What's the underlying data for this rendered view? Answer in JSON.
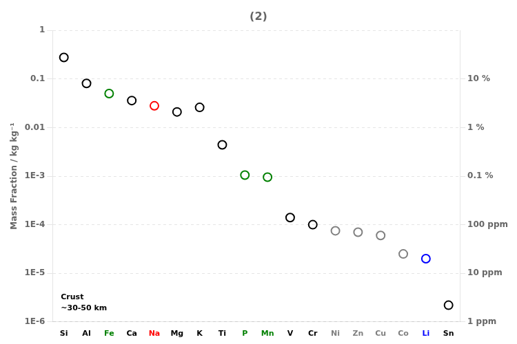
{
  "chart_data": {
    "type": "scatter",
    "title": "(2)",
    "ylabel": "Mass Fraction / kg kg⁻¹",
    "categories": [
      "Si",
      "Al",
      "Fe",
      "Ca",
      "Na",
      "Mg",
      "K",
      "Ti",
      "P",
      "Mn",
      "V",
      "Cr",
      "Ni",
      "Zn",
      "Cu",
      "Co",
      "Li",
      "Sn"
    ],
    "values": [
      0.277,
      0.081,
      0.05,
      0.036,
      0.028,
      0.021,
      0.026,
      0.0044,
      0.00105,
      0.00095,
      0.00014,
      0.0001,
      7.5e-05,
      7e-05,
      6e-05,
      2.5e-05,
      2e-05,
      2.2e-06
    ],
    "colors": [
      "black",
      "black",
      "green",
      "black",
      "red",
      "black",
      "black",
      "black",
      "green",
      "green",
      "black",
      "black",
      "gray",
      "gray",
      "gray",
      "gray",
      "blue",
      "black"
    ],
    "marker": "open_circle",
    "log": "y",
    "ylim": [
      1e-06,
      1
    ],
    "yticks": [
      {
        "value": 1e-06,
        "label": "1E-6"
      },
      {
        "value": 1e-05,
        "label": "1E-5"
      },
      {
        "value": 0.0001,
        "label": "1E-4"
      },
      {
        "value": 0.001,
        "label": "1E-3"
      },
      0.01,
      0.1,
      1
    ],
    "y2lim": [
      1e-06,
      1
    ],
    "y2ticks": [
      {
        "value": 1e-06,
        "label": "1 ppm"
      },
      {
        "value": 1e-05,
        "label": "10 ppm"
      },
      {
        "value": 0.0001,
        "label": "100 ppm"
      },
      {
        "value": 0.001,
        "label": "0.1 %"
      },
      {
        "value": 0.01,
        "label": "1 %"
      },
      {
        "value": 0.1,
        "label": "10 %"
      }
    ],
    "grid": true,
    "annotations": [
      "Crust",
      "~30-50 km"
    ]
  }
}
